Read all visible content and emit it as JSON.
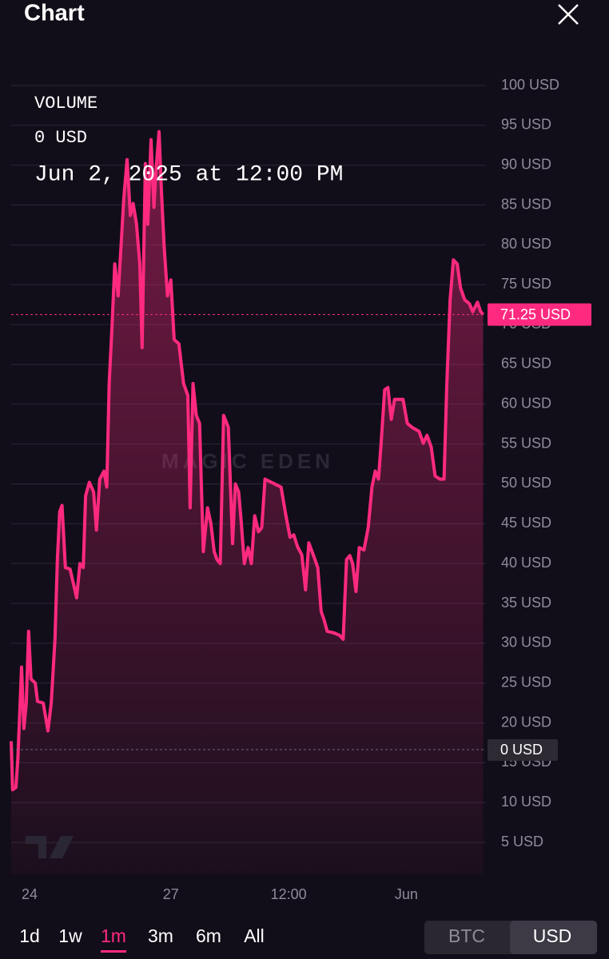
{
  "header": {
    "title": "Chart"
  },
  "chart_data": {
    "type": "line",
    "overlay": {
      "label": "VOLUME",
      "value_text": "0 USD",
      "date": "Jun 2, 2025 at 12:00 PM"
    },
    "watermark": "MAGIC EDEN",
    "x": [
      23.61,
      23.64,
      23.71,
      23.75,
      23.83,
      23.88,
      23.93,
      23.98,
      24.03,
      24.12,
      24.17,
      24.29,
      24.39,
      24.46,
      24.54,
      24.59,
      24.64,
      24.69,
      24.76,
      24.86,
      24.93,
      25.0,
      25.07,
      25.14,
      25.19,
      25.27,
      25.36,
      25.42,
      25.49,
      25.58,
      25.64,
      25.69,
      25.75,
      25.81,
      25.88,
      25.95,
      26.0,
      26.07,
      26.14,
      26.2,
      26.27,
      26.34,
      26.39,
      26.46,
      26.51,
      26.58,
      26.64,
      26.69,
      26.75,
      26.8,
      26.86,
      26.93,
      27.0,
      27.07,
      27.17,
      27.27,
      27.36,
      27.41,
      27.47,
      27.54,
      27.61,
      27.69,
      27.78,
      27.85,
      27.92,
      27.98,
      28.05,
      28.12,
      28.22,
      28.31,
      28.37,
      28.44,
      28.49,
      28.56,
      28.64,
      28.71,
      28.78,
      28.86,
      28.93,
      29.0,
      29.1,
      29.34,
      29.44,
      29.53,
      29.61,
      29.69,
      29.78,
      29.86,
      29.93,
      30.03,
      30.12,
      30.19,
      30.25,
      30.32,
      30.46,
      30.58,
      30.66,
      30.73,
      30.8,
      30.86,
      30.93,
      31.0,
      31.1,
      31.19,
      31.27,
      31.34,
      31.41,
      31.47,
      31.54,
      31.61,
      31.68,
      31.75,
      31.93,
      32.02,
      32.12,
      32.27,
      32.36,
      32.44,
      32.53,
      32.61,
      32.71,
      32.8,
      32.86,
      32.93,
      33.0,
      33.08,
      33.15,
      33.24,
      33.34,
      33.41,
      33.51,
      33.58,
      33.63
    ],
    "series": [
      {
        "color": "#ff2a7f",
        "values": [
          17.7,
          11.6,
          11.9,
          15.4,
          27,
          19.3,
          22.5,
          31.5,
          25.5,
          25,
          22.7,
          22.5,
          19,
          22.5,
          30.5,
          40.5,
          46.5,
          47.3,
          39.5,
          39.3,
          37.5,
          35.7,
          40,
          39.5,
          48.5,
          50.2,
          49,
          44.2,
          50.6,
          51.6,
          49.6,
          62.6,
          69.6,
          77.6,
          73.6,
          80.6,
          85.7,
          90.7,
          83.7,
          85.2,
          82.6,
          77.6,
          67.1,
          90.2,
          82.6,
          93.2,
          84.7,
          89.7,
          94.2,
          86.7,
          79.6,
          73.6,
          75.6,
          68.1,
          67.6,
          62.6,
          61.1,
          47,
          62.6,
          58.6,
          57.6,
          41.5,
          47,
          45,
          41.5,
          40.5,
          40,
          58.6,
          57.1,
          42.5,
          50,
          49,
          45.5,
          40,
          42,
          40,
          46,
          44,
          44.5,
          50.6,
          50.3,
          49.6,
          46.1,
          43.3,
          43.6,
          42.1,
          41.1,
          36.7,
          42.6,
          41,
          39.5,
          34,
          33,
          31.5,
          31.3,
          31,
          30.5,
          40.5,
          41,
          40,
          36.5,
          42,
          41.7,
          44.5,
          49.6,
          51.6,
          50.6,
          55.6,
          61.8,
          62.1,
          58.1,
          60.6,
          60.6,
          57.6,
          57.1,
          56.6,
          55.1,
          56.1,
          54.6,
          51,
          50.6,
          50.6,
          62.6,
          73.1,
          78.1,
          77.6,
          74.6,
          73.1,
          72.6,
          71.6,
          72.8,
          71.6,
          71.25
        ]
      }
    ],
    "xlim": [
      23.61,
      33.69
    ],
    "xticks": [
      {
        "value": 24,
        "label": "24"
      },
      {
        "value": 27,
        "label": "27"
      },
      {
        "value": 29.5,
        "label": "12:00"
      },
      {
        "value": 32,
        "label": "Jun"
      }
    ],
    "ylim": [
      1,
      100
    ],
    "yticks": [
      {
        "value": 100,
        "label": "100 USD"
      },
      {
        "value": 95,
        "label": "95 USD"
      },
      {
        "value": 90,
        "label": "90 USD"
      },
      {
        "value": 85,
        "label": "85 USD"
      },
      {
        "value": 80,
        "label": "80 USD"
      },
      {
        "value": 75,
        "label": "75 USD"
      },
      {
        "value": 70,
        "label": "70 USD"
      },
      {
        "value": 65,
        "label": "65 USD"
      },
      {
        "value": 60,
        "label": "60 USD"
      },
      {
        "value": 55,
        "label": "55 USD"
      },
      {
        "value": 50,
        "label": "50 USD"
      },
      {
        "value": 45,
        "label": "45 USD"
      },
      {
        "value": 40,
        "label": "40 USD"
      },
      {
        "value": 35,
        "label": "35 USD"
      },
      {
        "value": 30,
        "label": "30 USD"
      },
      {
        "value": 25,
        "label": "25 USD"
      },
      {
        "value": 20,
        "label": "20 USD"
      },
      {
        "value": 15,
        "label": "15 USD"
      },
      {
        "value": 10,
        "label": "10 USD"
      },
      {
        "value": 5,
        "label": "5 USD"
      }
    ],
    "grid": true,
    "last_price": {
      "value": 71.25,
      "label": "71.25 USD"
    },
    "volume_marker": {
      "label": "0 USD"
    }
  },
  "timeframes": {
    "options": [
      "1d",
      "1w",
      "1m",
      "3m",
      "6m",
      "All"
    ],
    "selected": "1m"
  },
  "currency_toggle": {
    "options": [
      "BTC",
      "USD"
    ],
    "selected": "USD"
  }
}
